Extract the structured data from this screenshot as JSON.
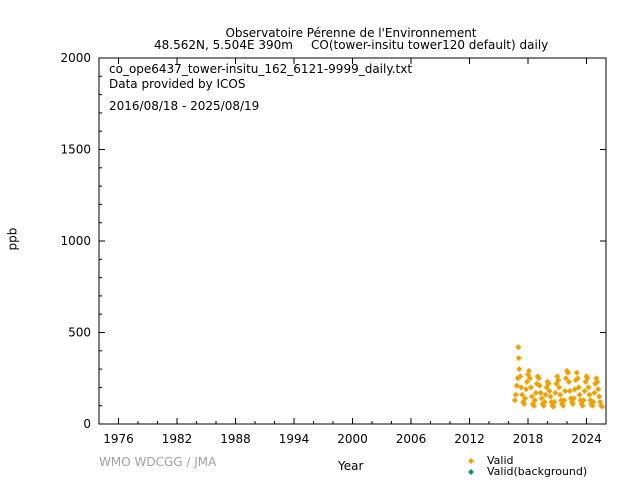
{
  "header": {
    "station": "Observatoire Pérenne de l'Environnement",
    "location": "48.562N, 5.504E 390m",
    "series_info": "CO(tower-insitu tower120 default) daily"
  },
  "info": {
    "filename": "co_ope6437_tower-insitu_162_6121-9999_daily.txt",
    "provider": "Data provided by ICOS",
    "period": "2016/08/18 - 2025/08/19"
  },
  "footer": {
    "credit": "WMO WDCGG / JMA"
  },
  "colors": {
    "valid": "#f0a000",
    "background": "#1a8a6a",
    "axis": "#000000",
    "credit": "#a0a0a0"
  },
  "chart_data": {
    "type": "scatter",
    "title": "",
    "xlabel": "Year",
    "ylabel": "ppb",
    "xlim": [
      1974,
      2026
    ],
    "ylim": [
      0,
      2000
    ],
    "xticks": [
      1976,
      1982,
      1988,
      1994,
      2000,
      2006,
      2012,
      2018,
      2024
    ],
    "yticks": [
      0,
      500,
      1000,
      1500,
      2000
    ],
    "grid": false,
    "legend_position": "bottom-right",
    "series": [
      {
        "name": "Valid",
        "marker": "diamond",
        "color": "#f0a000",
        "values": [
          [
            2016.65,
            130
          ],
          [
            2016.75,
            160
          ],
          [
            2016.85,
            210
          ],
          [
            2016.95,
            250
          ],
          [
            2017.0,
            420
          ],
          [
            2017.05,
            360
          ],
          [
            2017.1,
            300
          ],
          [
            2017.2,
            260
          ],
          [
            2017.3,
            200
          ],
          [
            2017.4,
            160
          ],
          [
            2017.5,
            120
          ],
          [
            2017.6,
            110
          ],
          [
            2017.7,
            140
          ],
          [
            2017.8,
            190
          ],
          [
            2017.9,
            230
          ],
          [
            2018.0,
            270
          ],
          [
            2018.1,
            290
          ],
          [
            2018.2,
            250
          ],
          [
            2018.3,
            200
          ],
          [
            2018.4,
            150
          ],
          [
            2018.5,
            110
          ],
          [
            2018.6,
            100
          ],
          [
            2018.7,
            130
          ],
          [
            2018.8,
            170
          ],
          [
            2018.9,
            220
          ],
          [
            2019.0,
            260
          ],
          [
            2019.1,
            250
          ],
          [
            2019.2,
            210
          ],
          [
            2019.3,
            170
          ],
          [
            2019.4,
            140
          ],
          [
            2019.5,
            110
          ],
          [
            2019.6,
            100
          ],
          [
            2019.7,
            120
          ],
          [
            2019.8,
            160
          ],
          [
            2019.9,
            200
          ],
          [
            2020.0,
            230
          ],
          [
            2020.1,
            220
          ],
          [
            2020.2,
            180
          ],
          [
            2020.3,
            150
          ],
          [
            2020.4,
            120
          ],
          [
            2020.5,
            100
          ],
          [
            2020.6,
            95
          ],
          [
            2020.7,
            120
          ],
          [
            2020.8,
            170
          ],
          [
            2020.9,
            220
          ],
          [
            2021.0,
            260
          ],
          [
            2021.1,
            240
          ],
          [
            2021.2,
            200
          ],
          [
            2021.3,
            160
          ],
          [
            2021.4,
            130
          ],
          [
            2021.5,
            110
          ],
          [
            2021.6,
            100
          ],
          [
            2021.7,
            130
          ],
          [
            2021.8,
            180
          ],
          [
            2021.9,
            250
          ],
          [
            2022.0,
            290
          ],
          [
            2022.1,
            280
          ],
          [
            2022.2,
            230
          ],
          [
            2022.3,
            180
          ],
          [
            2022.4,
            140
          ],
          [
            2022.5,
            120
          ],
          [
            2022.6,
            110
          ],
          [
            2022.7,
            140
          ],
          [
            2022.8,
            190
          ],
          [
            2022.9,
            240
          ],
          [
            2023.0,
            280
          ],
          [
            2023.1,
            250
          ],
          [
            2023.2,
            200
          ],
          [
            2023.3,
            160
          ],
          [
            2023.4,
            130
          ],
          [
            2023.5,
            110
          ],
          [
            2023.6,
            100
          ],
          [
            2023.7,
            130
          ],
          [
            2023.8,
            180
          ],
          [
            2023.9,
            230
          ],
          [
            2024.0,
            260
          ],
          [
            2024.1,
            250
          ],
          [
            2024.2,
            200
          ],
          [
            2024.3,
            160
          ],
          [
            2024.4,
            130
          ],
          [
            2024.5,
            110
          ],
          [
            2024.6,
            100
          ],
          [
            2024.7,
            120
          ],
          [
            2024.8,
            170
          ],
          [
            2024.9,
            220
          ],
          [
            2025.0,
            250
          ],
          [
            2025.1,
            230
          ],
          [
            2025.2,
            190
          ],
          [
            2025.3,
            150
          ],
          [
            2025.4,
            120
          ],
          [
            2025.5,
            100
          ],
          [
            2025.6,
            95
          ]
        ]
      },
      {
        "name": "Valid(background)",
        "marker": "diamond",
        "color": "#1a8a6a",
        "values": []
      }
    ]
  }
}
